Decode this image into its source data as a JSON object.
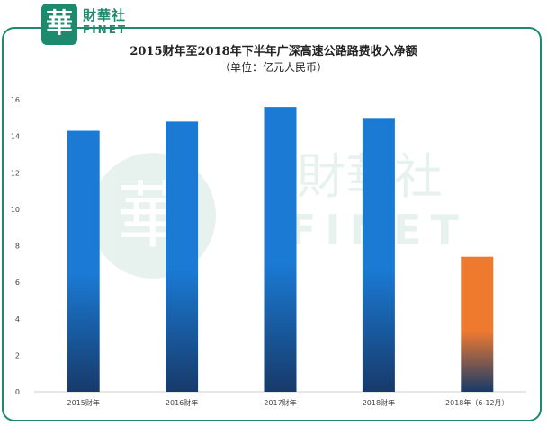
{
  "brand": {
    "badge_glyph": "華",
    "name_cn": "財華社",
    "name_en": "FINET",
    "color": "#1d8a6d"
  },
  "chart_data": {
    "type": "bar",
    "title": "2015财年至2018年下半年广深高速公路路费收入净额",
    "subtitle": "（单位：亿元人民币）",
    "categories": [
      "2015财年",
      "2016财年",
      "2017财年",
      "2018财年",
      "2018年（6-12月）"
    ],
    "values": [
      14.3,
      14.8,
      15.6,
      15.0,
      7.4
    ],
    "ylim": [
      0,
      16
    ],
    "yticks": [
      0,
      2,
      4,
      6,
      8,
      10,
      12,
      14,
      16
    ],
    "grid": false,
    "bar_colors": [
      "#1a7ad4",
      "#1a7ad4",
      "#1a7ad4",
      "#1a7ad4",
      "#ee7a30"
    ],
    "bar_bottom_color": "#173a6a"
  }
}
